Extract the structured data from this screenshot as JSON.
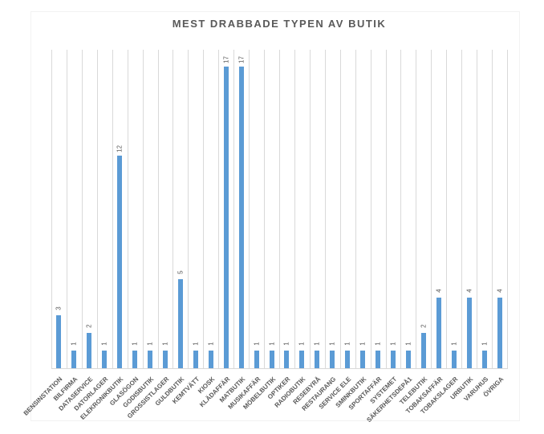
{
  "title": "MEST DRABBADE TYPEN AV BUTIK",
  "chart_data": {
    "type": "bar",
    "title": "MEST DRABBADE TYPEN AV BUTIK",
    "categories": [
      "BENSINSTATION",
      "BILFIRMA",
      "DATASERVICE",
      "DATORLAGER",
      "ELEKRONIKBUTIK",
      "GLASÖGON",
      "GODISBUTIK",
      "GROSSISTLAGER",
      "GULDBUTIK",
      "KEMTVÄTT",
      "KIOSK",
      "KLÄDAFFÄR",
      "MATBUTIK",
      "MUSIKAFFÄR",
      "MÖBELBUTIK",
      "OPTIKER",
      "RADIOBUTIK",
      "RESEBYRÅ",
      "RESTAURANG",
      "SERVICE ELE",
      "SMINKBUTIK",
      "SPORTAFFÄR",
      "SYSTEMET",
      "SÄKERHETSDEPÅ1",
      "TELEBUTIK",
      "TOBAKSAFFÄR",
      "TOBAKSLAGER",
      "URBUTIK",
      "VARUHUS",
      "ÖVRIGA"
    ],
    "values": [
      3,
      1,
      2,
      1,
      12,
      1,
      1,
      1,
      5,
      1,
      1,
      17,
      17,
      1,
      1,
      1,
      1,
      1,
      1,
      1,
      1,
      1,
      1,
      1,
      2,
      4,
      1,
      4,
      1,
      4
    ],
    "xlabel": "",
    "ylabel": "",
    "ylim": [
      0,
      18
    ],
    "grid": "vertical-category-lines",
    "legend_position": "none",
    "data_labels": "rotated-above-bars",
    "bar_color": "#5B9BD5",
    "gridline_color": "#D9D9D9",
    "text_color": "#595959"
  }
}
